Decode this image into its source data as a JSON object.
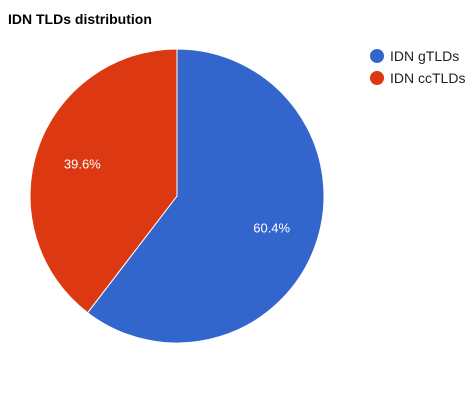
{
  "chart_data": {
    "type": "pie",
    "title": "IDN TLDs distribution",
    "categories": [
      "IDN gTLDs",
      "IDN ccTLDs"
    ],
    "values": [
      60.4,
      39.6
    ],
    "labels": [
      "60.4%",
      "39.6%"
    ],
    "colors": [
      "#3366cc",
      "#dc3912"
    ],
    "legend": "right",
    "start_angle": "12 o'clock",
    "direction": "clockwise"
  }
}
